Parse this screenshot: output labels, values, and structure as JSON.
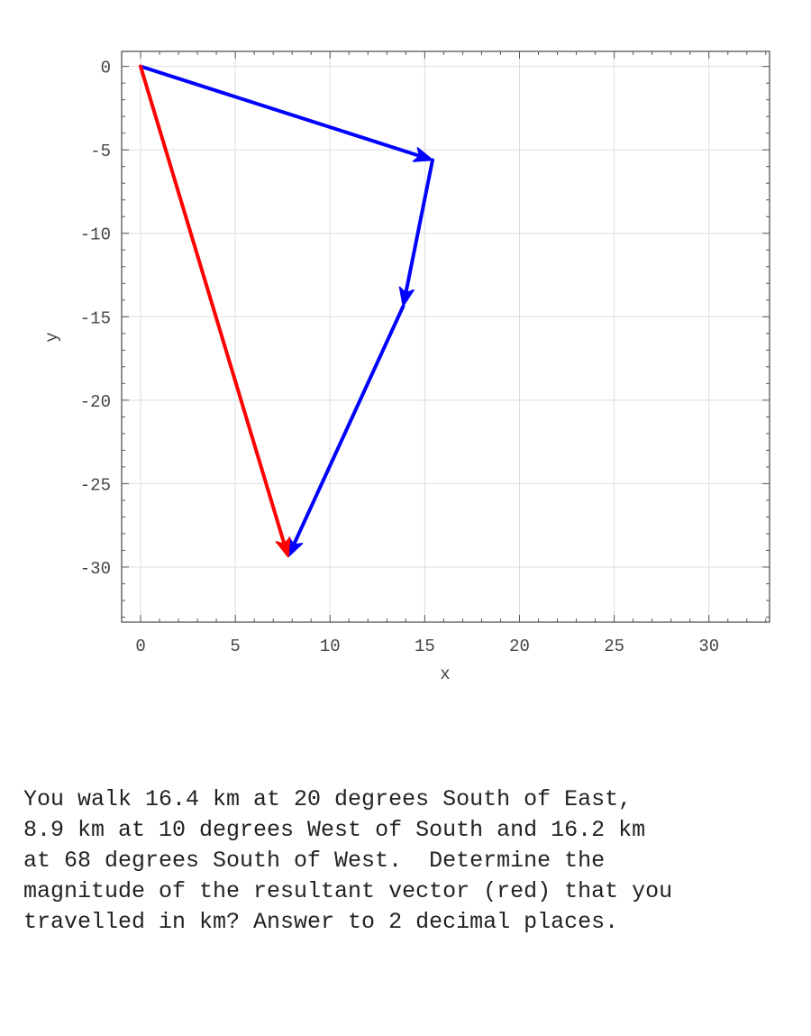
{
  "chart_data": {
    "type": "vector",
    "xlabel": "x",
    "ylabel": "y",
    "xlim": [
      -1,
      33.2
    ],
    "ylim": [
      -33.3,
      0.9
    ],
    "xticks": [
      0,
      5,
      10,
      15,
      20,
      25,
      30
    ],
    "yticks": [
      0,
      -5,
      -10,
      -15,
      -20,
      -25,
      -30
    ],
    "grid": true,
    "vectors": [
      {
        "from": [
          0,
          0
        ],
        "to": [
          15.41,
          -5.61
        ],
        "color": "#0000ff"
      },
      {
        "from": [
          15.41,
          -5.61
        ],
        "to": [
          13.86,
          -14.37
        ],
        "color": "#0000ff"
      },
      {
        "from": [
          13.86,
          -14.37
        ],
        "to": [
          7.79,
          -29.39
        ],
        "color": "#0000ff"
      },
      {
        "from": [
          0,
          0
        ],
        "to": [
          7.79,
          -29.39
        ],
        "color": "#ff0000"
      }
    ]
  },
  "question": {
    "lines": [
      "You walk 16.4 km at 20 degrees South of East,",
      "8.9 km at 10 degrees West of South and 16.2 km",
      "at 68 degrees South of West.  Determine the",
      "magnitude of the resultant vector (red) that you",
      "travelled in km? Answer to 2 decimal places."
    ]
  }
}
